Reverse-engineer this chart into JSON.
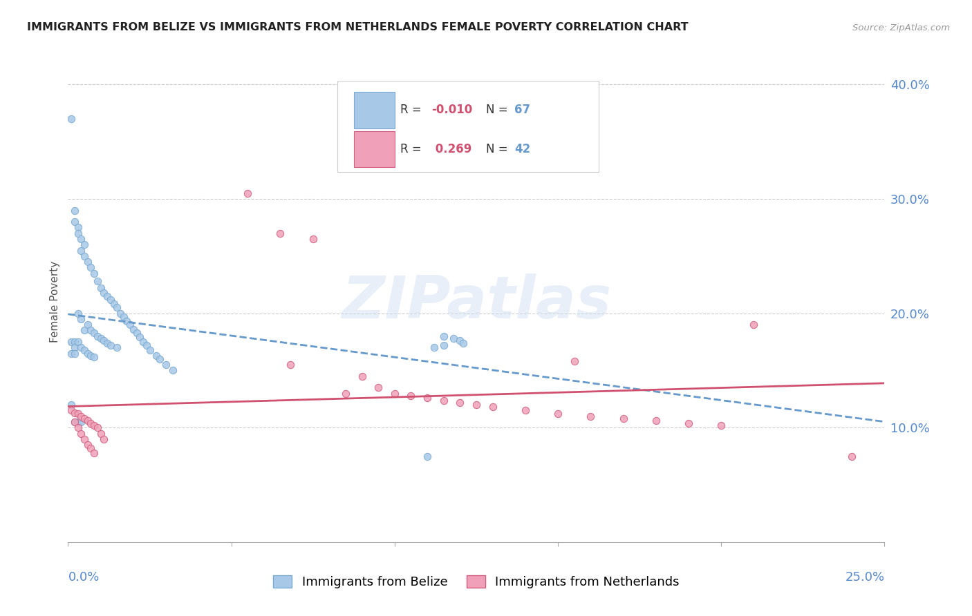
{
  "title": "IMMIGRANTS FROM BELIZE VS IMMIGRANTS FROM NETHERLANDS FEMALE POVERTY CORRELATION CHART",
  "source": "Source: ZipAtlas.com",
  "ylabel": "Female Poverty",
  "x_min": 0.0,
  "x_max": 0.25,
  "y_min": 0.0,
  "y_max": 0.42,
  "yticks": [
    0.1,
    0.2,
    0.3,
    0.4
  ],
  "ytick_labels": [
    "10.0%",
    "20.0%",
    "30.0%",
    "40.0%"
  ],
  "color_belize": "#a8c8e8",
  "color_belize_edge": "#7aaad0",
  "color_netherlands": "#f0a0b8",
  "color_netherlands_edge": "#d06080",
  "color_belize_line": "#6699cc",
  "color_netherlands_line": "#d05070",
  "color_axis_labels": "#5588cc",
  "color_grid": "#cccccc",
  "color_title": "#222222",
  "watermark": "ZIPatlas",
  "belize_x": [
    0.001,
    0.001,
    0.001,
    0.001,
    0.002,
    0.002,
    0.002,
    0.002,
    0.002,
    0.002,
    0.003,
    0.003,
    0.003,
    0.003,
    0.003,
    0.004,
    0.004,
    0.004,
    0.004,
    0.004,
    0.005,
    0.005,
    0.005,
    0.005,
    0.006,
    0.006,
    0.006,
    0.007,
    0.007,
    0.007,
    0.008,
    0.008,
    0.008,
    0.009,
    0.009,
    0.01,
    0.01,
    0.011,
    0.011,
    0.012,
    0.012,
    0.013,
    0.013,
    0.014,
    0.015,
    0.015,
    0.016,
    0.017,
    0.018,
    0.019,
    0.02,
    0.021,
    0.022,
    0.023,
    0.024,
    0.025,
    0.027,
    0.028,
    0.03,
    0.032,
    0.115,
    0.118,
    0.12,
    0.121,
    0.115,
    0.112,
    0.11
  ],
  "belize_y": [
    0.37,
    0.175,
    0.165,
    0.12,
    0.29,
    0.28,
    0.175,
    0.17,
    0.165,
    0.105,
    0.275,
    0.27,
    0.2,
    0.175,
    0.105,
    0.265,
    0.255,
    0.195,
    0.17,
    0.105,
    0.26,
    0.25,
    0.185,
    0.168,
    0.245,
    0.19,
    0.165,
    0.24,
    0.185,
    0.163,
    0.235,
    0.183,
    0.162,
    0.228,
    0.18,
    0.222,
    0.178,
    0.218,
    0.176,
    0.215,
    0.174,
    0.212,
    0.172,
    0.208,
    0.205,
    0.17,
    0.2,
    0.197,
    0.193,
    0.19,
    0.186,
    0.183,
    0.179,
    0.175,
    0.172,
    0.168,
    0.163,
    0.16,
    0.155,
    0.15,
    0.18,
    0.178,
    0.176,
    0.174,
    0.172,
    0.17,
    0.075
  ],
  "netherlands_x": [
    0.001,
    0.002,
    0.002,
    0.003,
    0.003,
    0.004,
    0.004,
    0.005,
    0.005,
    0.006,
    0.006,
    0.007,
    0.007,
    0.008,
    0.008,
    0.009,
    0.01,
    0.011,
    0.055,
    0.065,
    0.068,
    0.075,
    0.085,
    0.09,
    0.095,
    0.1,
    0.105,
    0.11,
    0.115,
    0.12,
    0.125,
    0.13,
    0.14,
    0.15,
    0.155,
    0.16,
    0.17,
    0.18,
    0.19,
    0.2,
    0.21,
    0.24
  ],
  "netherlands_y": [
    0.115,
    0.113,
    0.105,
    0.112,
    0.1,
    0.11,
    0.095,
    0.108,
    0.09,
    0.106,
    0.085,
    0.104,
    0.082,
    0.102,
    0.078,
    0.1,
    0.095,
    0.09,
    0.305,
    0.27,
    0.155,
    0.265,
    0.13,
    0.145,
    0.135,
    0.13,
    0.128,
    0.126,
    0.124,
    0.122,
    0.12,
    0.118,
    0.115,
    0.112,
    0.158,
    0.11,
    0.108,
    0.106,
    0.104,
    0.102,
    0.19,
    0.075
  ]
}
